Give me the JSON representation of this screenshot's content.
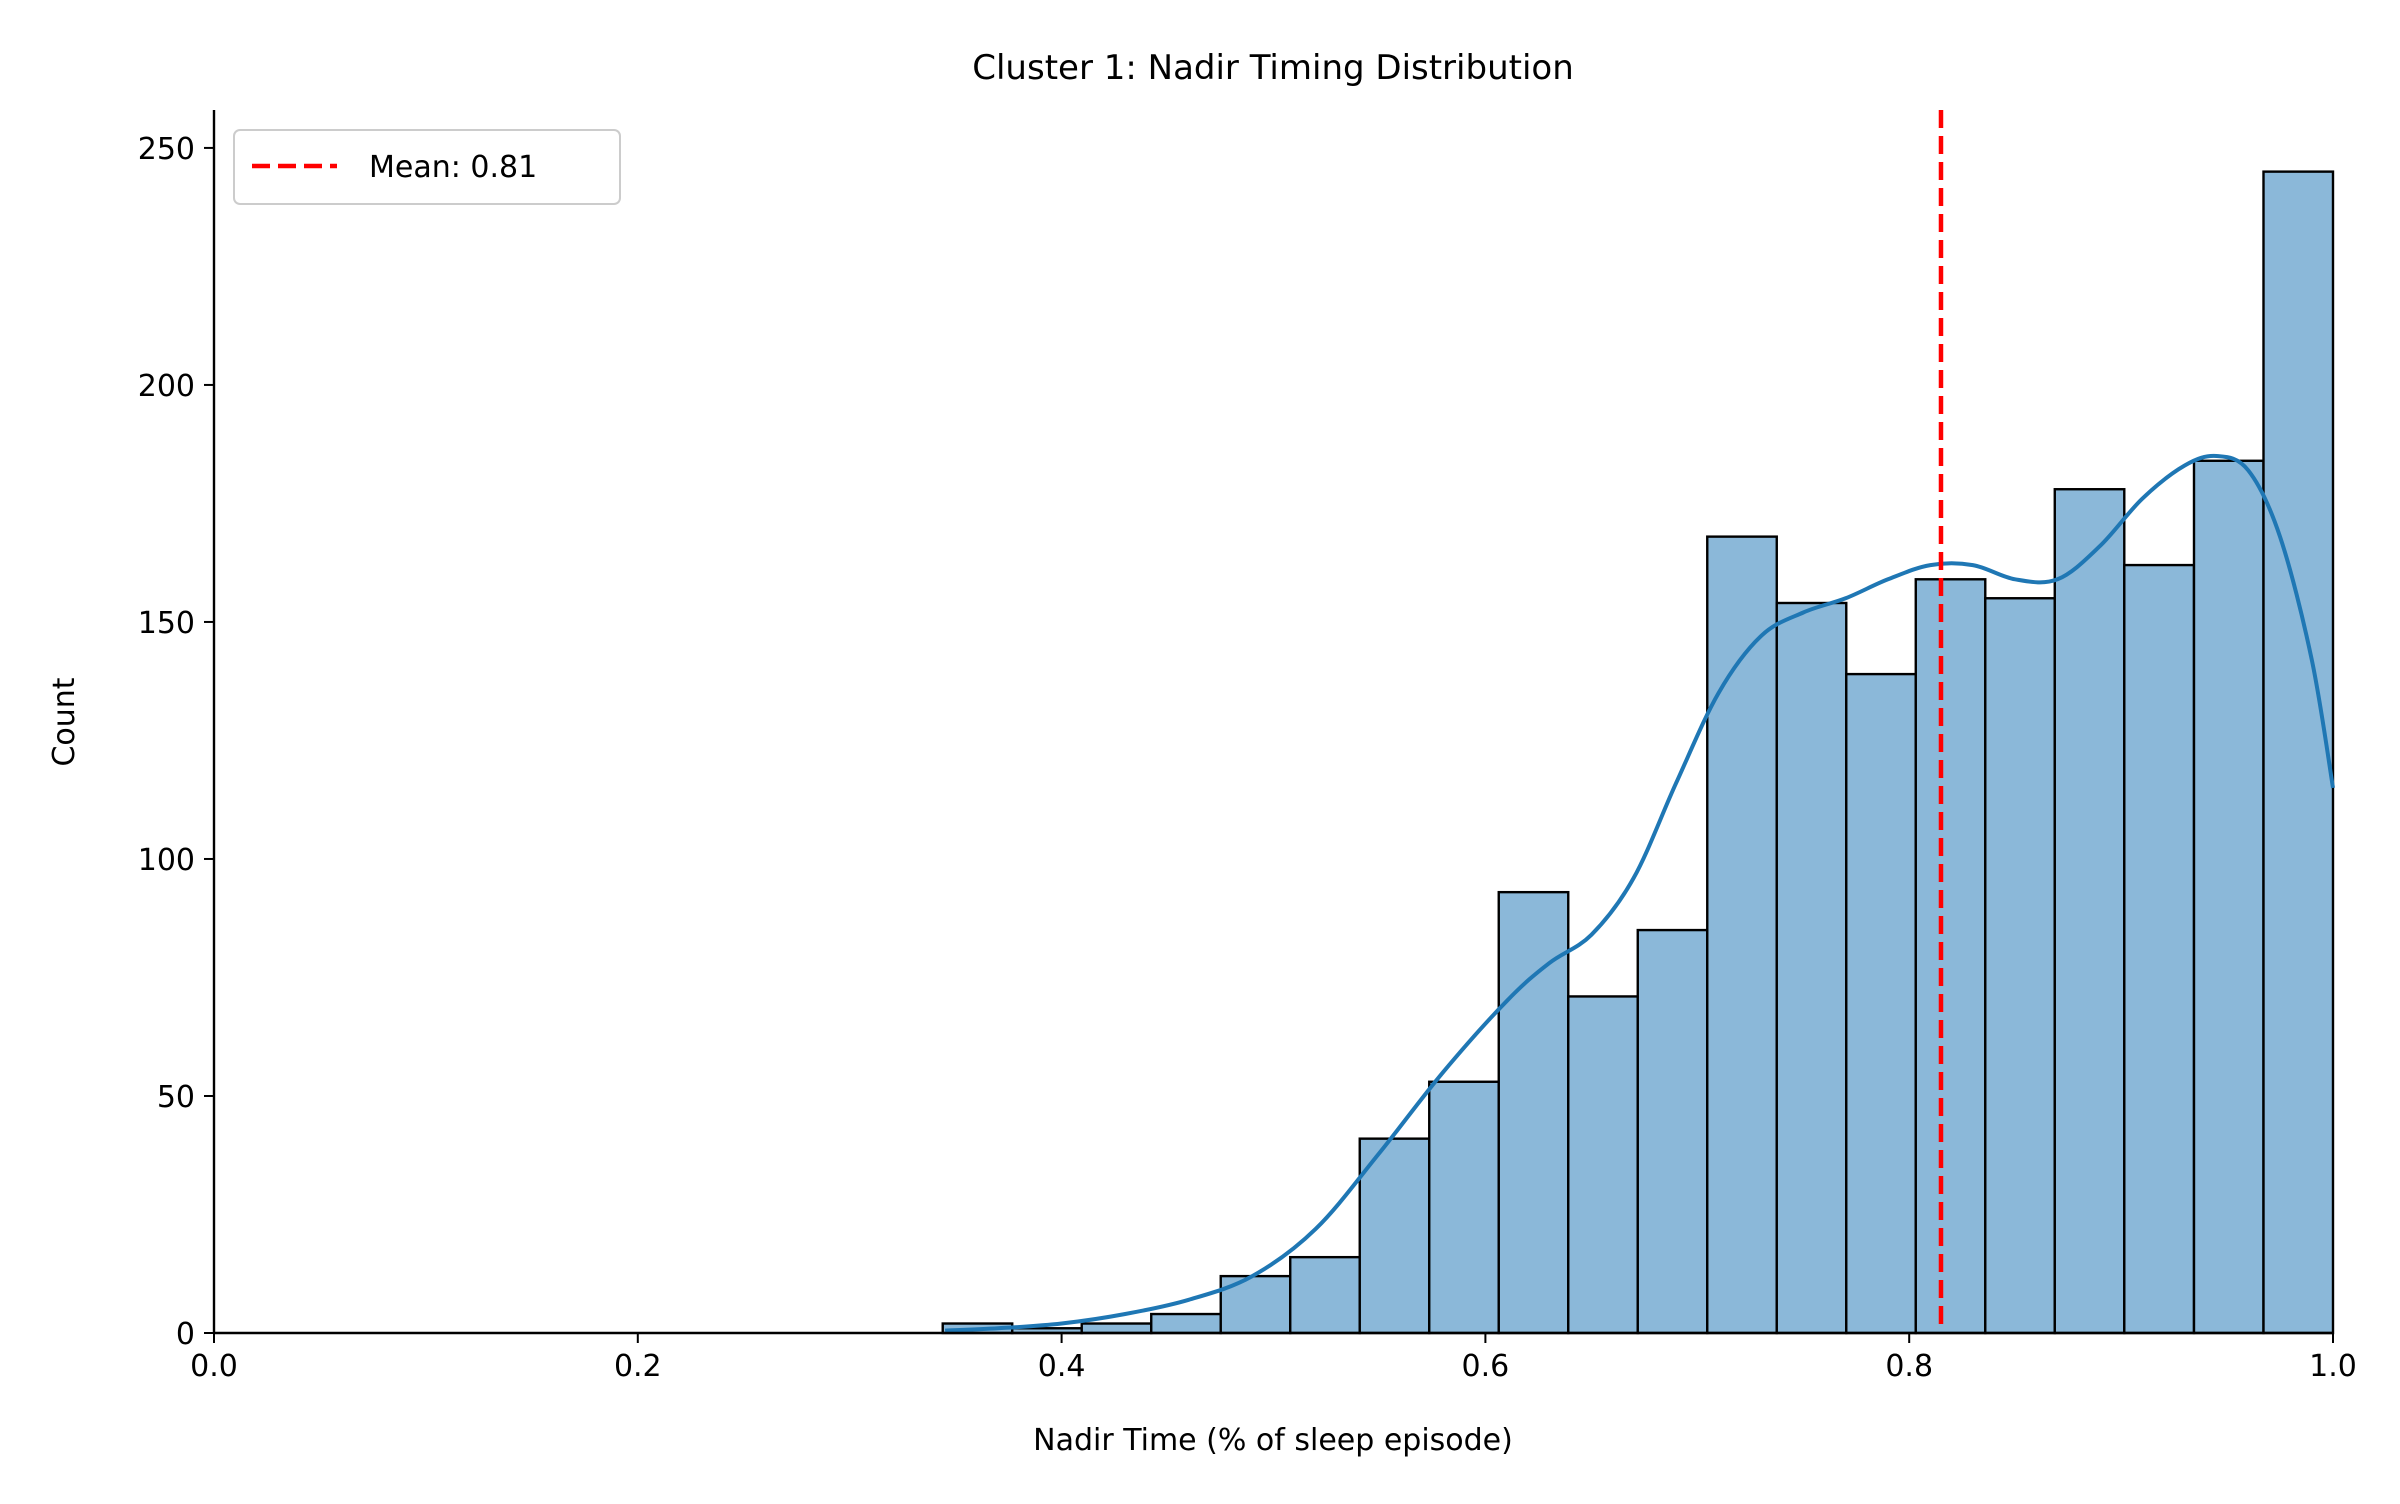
{
  "chart_data": {
    "type": "bar",
    "title": "Cluster 1: Nadir Timing Distribution",
    "xlabel": "Nadir Time (% of sleep episode)",
    "ylabel": "Count",
    "xlim": [
      0.0,
      1.0
    ],
    "ylim": [
      0,
      258
    ],
    "x_ticks": [
      0.0,
      0.2,
      0.4,
      0.6,
      0.8,
      1.0
    ],
    "x_tick_labels": [
      "0.0",
      "0.2",
      "0.4",
      "0.6",
      "0.8",
      "1.0"
    ],
    "y_ticks": [
      0,
      50,
      100,
      150,
      200,
      250
    ],
    "y_tick_labels": [
      "0",
      "50",
      "100",
      "150",
      "200",
      "250"
    ],
    "grid": false,
    "legend_position": "top-left",
    "bins": [
      {
        "x0": 0.3439,
        "x1": 0.3767,
        "count": 2
      },
      {
        "x0": 0.3767,
        "x1": 0.4095,
        "count": 1
      },
      {
        "x0": 0.4095,
        "x1": 0.4423,
        "count": 2
      },
      {
        "x0": 0.4423,
        "x1": 0.4751,
        "count": 4
      },
      {
        "x0": 0.4751,
        "x1": 0.5079,
        "count": 12
      },
      {
        "x0": 0.5079,
        "x1": 0.5407,
        "count": 16
      },
      {
        "x0": 0.5407,
        "x1": 0.5735,
        "count": 41
      },
      {
        "x0": 0.5735,
        "x1": 0.6063,
        "count": 53
      },
      {
        "x0": 0.6063,
        "x1": 0.6391,
        "count": 93
      },
      {
        "x0": 0.6391,
        "x1": 0.6719,
        "count": 71
      },
      {
        "x0": 0.6719,
        "x1": 0.7047,
        "count": 85
      },
      {
        "x0": 0.7047,
        "x1": 0.7375,
        "count": 168
      },
      {
        "x0": 0.7375,
        "x1": 0.7703,
        "count": 154
      },
      {
        "x0": 0.7703,
        "x1": 0.8031,
        "count": 139
      },
      {
        "x0": 0.8031,
        "x1": 0.8359,
        "count": 159
      },
      {
        "x0": 0.8359,
        "x1": 0.8687,
        "count": 155
      },
      {
        "x0": 0.8687,
        "x1": 0.9015,
        "count": 178
      },
      {
        "x0": 0.9015,
        "x1": 0.9344,
        "count": 162
      },
      {
        "x0": 0.9344,
        "x1": 0.9672,
        "count": 184
      },
      {
        "x0": 0.9672,
        "x1": 1.0,
        "count": 245
      }
    ],
    "kde_curve": {
      "x": [
        0.345,
        0.37,
        0.4,
        0.43,
        0.46,
        0.49,
        0.52,
        0.55,
        0.58,
        0.61,
        0.63,
        0.65,
        0.67,
        0.69,
        0.71,
        0.73,
        0.75,
        0.77,
        0.79,
        0.81,
        0.83,
        0.85,
        0.87,
        0.89,
        0.91,
        0.93,
        0.945,
        0.96,
        0.975,
        0.99,
        1.0
      ],
      "y": [
        0.5,
        1,
        2,
        4,
        7,
        12,
        22,
        38,
        55,
        70,
        78,
        84,
        96,
        116,
        135,
        147,
        152,
        155,
        159,
        162,
        162,
        159,
        159,
        166,
        176,
        183,
        185,
        182,
        168,
        142,
        115
      ]
    },
    "mean_line": {
      "x": 0.815,
      "label": "Mean: 0.81",
      "color": "#ff0000"
    },
    "bar_color": "#8bb8d9",
    "bar_edge_color": "#000000",
    "kde_color": "#1f77b4",
    "legend_entries": [
      "Mean: 0.81"
    ]
  }
}
